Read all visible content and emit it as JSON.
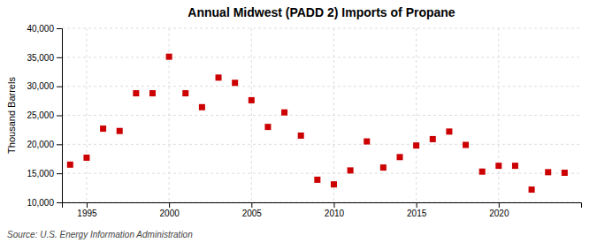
{
  "chart_data": {
    "type": "scatter",
    "title": "Annual Midwest (PADD 2) Imports of Propane",
    "ylabel": "Thousand Barrels",
    "source": "Source: U.S. Energy Information Administration",
    "x": [
      1994,
      1995,
      1996,
      1997,
      1998,
      1999,
      2000,
      2001,
      2002,
      2003,
      2004,
      2005,
      2006,
      2007,
      2008,
      2009,
      2010,
      2011,
      2012,
      2013,
      2014,
      2015,
      2016,
      2017,
      2018,
      2019,
      2020,
      2021,
      2022,
      2023,
      2024
    ],
    "values": [
      16500,
      17700,
      22700,
      22300,
      28800,
      28800,
      35100,
      28800,
      26400,
      31500,
      30600,
      27600,
      23000,
      25500,
      21500,
      13900,
      13100,
      15500,
      20500,
      16000,
      17800,
      19800,
      20900,
      22200,
      19900,
      15300,
      16300,
      16300,
      12200,
      15200,
      15100
    ],
    "color": "#cc0000",
    "marker": "square",
    "xlim": [
      1993.5,
      2025
    ],
    "ylim": [
      10000,
      40000
    ],
    "xticks": [
      1995,
      2000,
      2005,
      2010,
      2015,
      2020
    ],
    "yticks": [
      {
        "value": 10000,
        "label": "10,000"
      },
      {
        "value": 15000,
        "label": "15,000"
      },
      {
        "value": 20000,
        "label": "20,000"
      },
      {
        "value": 25000,
        "label": "25,000"
      },
      {
        "value": 30000,
        "label": "30,000"
      },
      {
        "value": 35000,
        "label": "35,000"
      },
      {
        "value": 40000,
        "label": "40,000"
      }
    ],
    "grid": true
  }
}
